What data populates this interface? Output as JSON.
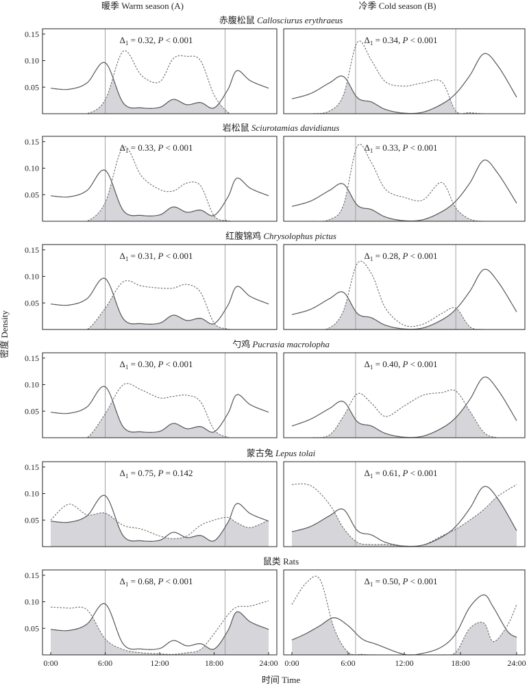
{
  "figure": {
    "col_headers": [
      "暖季 Warm season (A)",
      "冷季 Cold season (B)"
    ],
    "ylabel": "密度 Density",
    "xlabel": "时间 Time",
    "x_ticks": [
      "0:00",
      "6:00",
      "12:00",
      "18:00",
      "24:00"
    ],
    "y_ticks": [
      "0.05",
      "0.10",
      "0.15"
    ]
  },
  "chart_data": [
    {
      "type": "line",
      "species_zh": "赤腹松鼠",
      "species_latin": "Callosciurus erythraeus",
      "panels": [
        {
          "season": "warm",
          "delta_label": "Δ",
          "delta_value": "0.32",
          "p_text": ", P < 0.001",
          "ref_lines": [
            6.0,
            19.2
          ],
          "x": [
            0,
            2,
            4,
            6,
            8,
            10,
            12,
            13.5,
            15,
            16.5,
            18,
            19.5,
            20.5,
            22,
            24
          ],
          "solid": [
            0.048,
            0.046,
            0.058,
            0.096,
            0.02,
            0.011,
            0.012,
            0.027,
            0.017,
            0.021,
            0.011,
            0.045,
            0.081,
            0.062,
            0.048
          ],
          "dashed": [
            0,
            0,
            0,
            0.026,
            0.118,
            0.072,
            0.06,
            0.104,
            0.108,
            0.1,
            0.035,
            0.003,
            0,
            0,
            0
          ]
        },
        {
          "season": "cold",
          "delta_label": "Δ",
          "delta_value": "0.34",
          "p_text": ", P < 0.001",
          "ref_lines": [
            6.8,
            17.5
          ],
          "x": [
            0,
            2,
            4,
            5.5,
            7,
            8.5,
            10,
            12,
            14,
            16,
            17.5,
            19,
            20.5,
            22,
            24
          ],
          "solid": [
            0.028,
            0.038,
            0.058,
            0.07,
            0.03,
            0.022,
            0.008,
            0.001,
            0.003,
            0.018,
            0.038,
            0.072,
            0.113,
            0.09,
            0.031
          ],
          "dashed": [
            0,
            0,
            0.005,
            0.035,
            0.135,
            0.1,
            0.06,
            0.052,
            0.058,
            0.06,
            0.005,
            0.002,
            0,
            0,
            0
          ]
        }
      ]
    },
    {
      "type": "line",
      "species_zh": "岩松鼠",
      "species_latin": "Sciurotamias davidianus",
      "panels": [
        {
          "season": "warm",
          "delta_label": "Δ",
          "delta_value": "0.33",
          "p_text": ", P < 0.001",
          "ref_lines": [
            6.0,
            19.2
          ],
          "x": [
            0,
            2,
            4,
            6,
            8,
            10,
            12,
            13.5,
            15,
            16.5,
            18,
            19.5,
            20.5,
            22,
            24
          ],
          "solid": [
            0.048,
            0.046,
            0.058,
            0.096,
            0.02,
            0.011,
            0.012,
            0.027,
            0.017,
            0.021,
            0.011,
            0.045,
            0.081,
            0.062,
            0.048
          ],
          "dashed": [
            0,
            0,
            0,
            0.035,
            0.14,
            0.085,
            0.06,
            0.057,
            0.072,
            0.067,
            0.01,
            0.001,
            0,
            0,
            0
          ]
        },
        {
          "season": "cold",
          "delta_label": "Δ",
          "delta_value": "0.33",
          "p_text": ", P < 0.001",
          "ref_lines": [
            6.8,
            17.5
          ],
          "x": [
            0,
            2,
            4,
            5.5,
            7,
            8.5,
            10,
            12,
            14,
            16,
            17.5,
            19,
            20.5,
            22,
            24
          ],
          "solid": [
            0.028,
            0.038,
            0.058,
            0.07,
            0.03,
            0.022,
            0.008,
            0.001,
            0.003,
            0.018,
            0.038,
            0.072,
            0.115,
            0.09,
            0.034
          ],
          "dashed": [
            0,
            0,
            0.003,
            0.03,
            0.142,
            0.11,
            0.06,
            0.045,
            0.04,
            0.073,
            0.025,
            0.004,
            0,
            0,
            0
          ]
        }
      ]
    },
    {
      "type": "line",
      "species_zh": "红腹锦鸡",
      "species_latin": "Chrysolophus pictus",
      "panels": [
        {
          "season": "warm",
          "delta_label": "Δ",
          "delta_value": "0.31",
          "p_text": ", P < 0.001",
          "ref_lines": [
            6.0,
            19.2
          ],
          "x": [
            0,
            2,
            4,
            6,
            8,
            10,
            12,
            13.5,
            15,
            16.5,
            18,
            19.5,
            20.5,
            22,
            24
          ],
          "solid": [
            0.048,
            0.046,
            0.058,
            0.096,
            0.02,
            0.011,
            0.012,
            0.027,
            0.017,
            0.021,
            0.011,
            0.045,
            0.081,
            0.062,
            0.048
          ],
          "dashed": [
            0,
            0,
            0,
            0.04,
            0.09,
            0.082,
            0.078,
            0.078,
            0.085,
            0.07,
            0.012,
            0.001,
            0,
            0,
            0
          ]
        },
        {
          "season": "cold",
          "delta_label": "Δ",
          "delta_value": "0.28",
          "p_text": ", P < 0.001",
          "ref_lines": [
            6.8,
            17.5
          ],
          "x": [
            0,
            2,
            4,
            5.5,
            7,
            8.5,
            10,
            12,
            14,
            16,
            17.5,
            19,
            20.5,
            22,
            24
          ],
          "solid": [
            0.028,
            0.038,
            0.058,
            0.07,
            0.03,
            0.022,
            0.008,
            0.001,
            0.003,
            0.018,
            0.038,
            0.072,
            0.113,
            0.09,
            0.033
          ],
          "dashed": [
            0,
            0,
            0.003,
            0.035,
            0.125,
            0.105,
            0.04,
            0.008,
            0.01,
            0.03,
            0.04,
            0.005,
            0,
            0,
            0
          ]
        }
      ]
    },
    {
      "type": "line",
      "species_zh": "勺鸡",
      "species_latin": "Pucrasia macrolopha",
      "panels": [
        {
          "season": "warm",
          "delta_label": "Δ",
          "delta_value": "0.30",
          "p_text": ", P < 0.001",
          "ref_lines": [
            6.0,
            19.2
          ],
          "x": [
            0,
            2,
            4,
            6,
            8,
            10,
            12,
            13.5,
            15,
            16.5,
            18,
            19.5,
            20.5,
            22,
            24
          ],
          "solid": [
            0.048,
            0.046,
            0.058,
            0.096,
            0.02,
            0.011,
            0.012,
            0.027,
            0.017,
            0.021,
            0.011,
            0.045,
            0.081,
            0.062,
            0.048
          ],
          "dashed": [
            0,
            0,
            0,
            0.045,
            0.1,
            0.09,
            0.075,
            0.078,
            0.08,
            0.068,
            0.015,
            0.001,
            0,
            0,
            0
          ]
        },
        {
          "season": "cold",
          "delta_label": "Δ",
          "delta_value": "0.40",
          "p_text": ", P < 0.001",
          "ref_lines": [
            6.8,
            17.5
          ],
          "x": [
            0,
            2,
            4,
            5.5,
            7,
            8.5,
            10,
            12,
            14,
            16,
            17.5,
            19,
            20.5,
            22,
            24
          ],
          "solid": [
            0.022,
            0.035,
            0.055,
            0.068,
            0.03,
            0.022,
            0.008,
            0.001,
            0.003,
            0.018,
            0.038,
            0.072,
            0.114,
            0.09,
            0.032
          ],
          "dashed": [
            0,
            0,
            0.005,
            0.04,
            0.083,
            0.065,
            0.04,
            0.06,
            0.08,
            0.085,
            0.088,
            0.05,
            0.01,
            0,
            0
          ]
        }
      ]
    },
    {
      "type": "line",
      "species_zh": "蒙古兔",
      "species_latin": "Lepus tolai",
      "panels": [
        {
          "season": "warm",
          "delta_label": "Δ",
          "delta_value": "0.75",
          "p_text": ", P = 0.142",
          "ref_lines": [
            6.0,
            19.2
          ],
          "x": [
            0,
            2,
            4,
            6,
            8,
            10,
            12,
            13.5,
            15,
            16.5,
            18,
            19.5,
            20.5,
            22,
            24
          ],
          "solid": [
            0.048,
            0.046,
            0.058,
            0.096,
            0.02,
            0.011,
            0.012,
            0.027,
            0.017,
            0.021,
            0.011,
            0.045,
            0.081,
            0.062,
            0.048
          ],
          "dashed": [
            0.05,
            0.08,
            0.06,
            0.063,
            0.04,
            0.033,
            0.02,
            0.015,
            0.02,
            0.04,
            0.05,
            0.055,
            0.045,
            0.036,
            0.05
          ]
        },
        {
          "season": "cold",
          "delta_label": "Δ",
          "delta_value": "0.61",
          "p_text": ", P < 0.001",
          "ref_lines": [
            6.8,
            17.5
          ],
          "x": [
            0,
            2,
            4,
            5.5,
            7,
            8.5,
            10,
            12,
            14,
            16,
            17.5,
            19,
            20.5,
            22,
            24
          ],
          "solid": [
            0.028,
            0.038,
            0.058,
            0.07,
            0.03,
            0.022,
            0.008,
            0.001,
            0.003,
            0.018,
            0.038,
            0.072,
            0.113,
            0.09,
            0.03
          ],
          "dashed": [
            0.117,
            0.115,
            0.08,
            0.035,
            0.008,
            0.004,
            0.004,
            0.001,
            0.003,
            0.02,
            0.033,
            0.05,
            0.07,
            0.095,
            0.117
          ]
        }
      ]
    },
    {
      "type": "line",
      "species_zh": "鼠类",
      "species_latin": "Rats",
      "panels": [
        {
          "season": "warm",
          "delta_label": "Δ",
          "delta_value": "0.68",
          "p_text": ", P < 0.001",
          "ref_lines": [
            6.0,
            19.2
          ],
          "x": [
            0,
            2,
            4,
            6,
            8,
            10,
            12,
            13.5,
            15,
            16.5,
            18,
            19.5,
            20.5,
            22,
            24
          ],
          "solid": [
            0.048,
            0.046,
            0.058,
            0.096,
            0.02,
            0.011,
            0.012,
            0.027,
            0.017,
            0.021,
            0.011,
            0.045,
            0.081,
            0.062,
            0.048
          ],
          "dashed": [
            0.09,
            0.088,
            0.085,
            0.03,
            0.01,
            0.004,
            0.002,
            0.001,
            0.004,
            0.01,
            0.04,
            0.075,
            0.09,
            0.092,
            0.102
          ]
        },
        {
          "season": "cold",
          "delta_label": "Δ",
          "delta_value": "0.50",
          "p_text": ", P < 0.001",
          "ref_lines": [
            6.8,
            17.5
          ],
          "x": [
            0,
            1.5,
            3,
            4.5,
            6,
            7.5,
            9,
            12,
            14,
            16,
            17.5,
            19,
            20.5,
            21.5,
            23,
            24
          ],
          "solid": [
            0.028,
            0.04,
            0.055,
            0.07,
            0.055,
            0.03,
            0.02,
            0.001,
            0.003,
            0.015,
            0.04,
            0.09,
            0.113,
            0.09,
            0.045,
            0.033
          ],
          "dashed": [
            0.095,
            0.135,
            0.142,
            0.05,
            0.005,
            0.001,
            0,
            0,
            0,
            0,
            0.005,
            0.05,
            0.06,
            0.025,
            0.055,
            0.095
          ]
        }
      ]
    }
  ]
}
